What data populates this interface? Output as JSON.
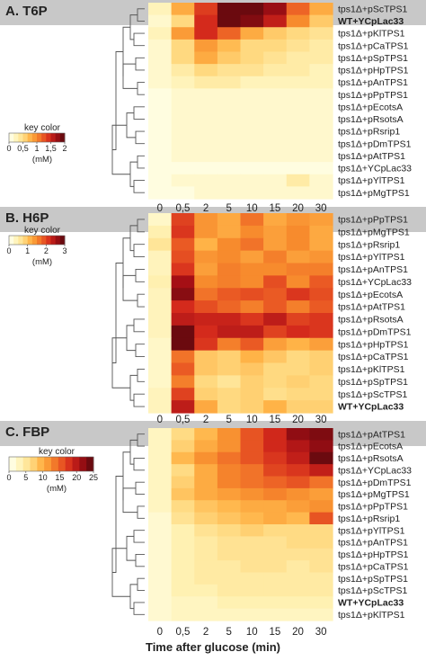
{
  "chart_data": [
    {
      "type": "heatmap",
      "panel_label": "A. T6P",
      "columns": [
        "0",
        "0,5",
        "2",
        "5",
        "10",
        "15",
        "20",
        "30"
      ],
      "rows": [
        "tps1Δ+pScTPS1",
        "WT+YCpLac33",
        "tps1Δ+pKlTPS1",
        "tps1Δ+pCaTPS1",
        "tps1Δ+pSpTPS1",
        "tps1Δ+pHpTPS1",
        "tps1Δ+pAnTPS1",
        "tps1Δ+pPpTPS1",
        "tps1Δ+pEcotsA",
        "tps1Δ+pRsotsA",
        "tps1Δ+pRsrip1",
        "tps1Δ+pDmTPS1",
        "tps1Δ+pAtTPS1",
        "tps1Δ+YCpLac33",
        "tps1Δ+pYlTPS1",
        "tps1Δ+pMgTPS1"
      ],
      "row_style": [
        "normal",
        "bold",
        "normal",
        "normal",
        "normal",
        "normal",
        "normal",
        "normal",
        "normal",
        "normal",
        "normal",
        "normal",
        "normal",
        "red",
        "normal",
        "normal"
      ],
      "values": [
        [
          0.2,
          0.8,
          1.4,
          2.0,
          2.0,
          1.8,
          1.2,
          0.8
        ],
        [
          0.1,
          0.5,
          1.5,
          2.0,
          1.9,
          1.6,
          1.0,
          0.6
        ],
        [
          0.2,
          0.9,
          1.5,
          1.2,
          0.8,
          0.6,
          0.5,
          0.4
        ],
        [
          0.1,
          0.5,
          0.9,
          0.7,
          0.5,
          0.5,
          0.4,
          0.3
        ],
        [
          0.1,
          0.5,
          0.8,
          0.6,
          0.5,
          0.4,
          0.3,
          0.3
        ],
        [
          0.1,
          0.3,
          0.5,
          0.4,
          0.4,
          0.3,
          0.3,
          0.2
        ],
        [
          0.1,
          0.2,
          0.3,
          0.3,
          0.2,
          0.2,
          0.2,
          0.2
        ],
        [
          0.0,
          0.1,
          0.1,
          0.1,
          0.1,
          0.1,
          0.1,
          0.1
        ],
        [
          0.0,
          0.1,
          0.1,
          0.1,
          0.1,
          0.1,
          0.1,
          0.1
        ],
        [
          0.0,
          0.1,
          0.1,
          0.1,
          0.1,
          0.1,
          0.1,
          0.1
        ],
        [
          0.0,
          0.1,
          0.1,
          0.1,
          0.1,
          0.1,
          0.1,
          0.1
        ],
        [
          0.0,
          0.1,
          0.1,
          0.1,
          0.1,
          0.1,
          0.1,
          0.1
        ],
        [
          0.0,
          0.1,
          0.1,
          0.1,
          0.1,
          0.1,
          0.1,
          0.1
        ],
        [
          0.0,
          0.0,
          0.0,
          0.0,
          0.0,
          0.0,
          0.0,
          0.0
        ],
        [
          0.0,
          0.1,
          0.1,
          0.1,
          0.1,
          0.1,
          0.3,
          0.1
        ],
        [
          0.0,
          0.0,
          0.1,
          0.1,
          0.1,
          0.1,
          0.1,
          0.1
        ]
      ],
      "key": {
        "title": "key color",
        "ticks": [
          "0",
          "0,5",
          "1",
          "1,5",
          "2"
        ],
        "unit": "(mM)",
        "min": 0,
        "max": 2
      }
    },
    {
      "type": "heatmap",
      "panel_label": "B. H6P",
      "columns": [
        "0",
        "0,5",
        "2",
        "5",
        "10",
        "15",
        "20",
        "30"
      ],
      "rows": [
        "tps1Δ+pPpTPS1",
        "tps1Δ+pMgTPS1",
        "tps1Δ+pRsrip1",
        "tps1Δ+pYlTPS1",
        "tps1Δ+pAnTPS1",
        "tps1Δ+YCpLac33",
        "tps1Δ+pEcotsA",
        "tps1Δ+pAtTPS1",
        "tps1Δ+pRsotsA",
        "tps1Δ+pDmTPS1",
        "tps1Δ+pHpTPS1",
        "tps1Δ+pCaTPS1",
        "tps1Δ+pKlTPS1",
        "tps1Δ+pSpTPS1",
        "tps1Δ+pScTPS1",
        "WT+YCpLac33"
      ],
      "row_style": [
        "normal",
        "normal",
        "normal",
        "normal",
        "normal",
        "red",
        "normal",
        "normal",
        "normal",
        "normal",
        "normal",
        "normal",
        "normal",
        "normal",
        "normal",
        "bold"
      ],
      "values": [
        [
          0.2,
          2.2,
          1.5,
          1.3,
          1.8,
          1.3,
          1.5,
          1.4
        ],
        [
          0.4,
          2.3,
          1.5,
          1.3,
          1.6,
          1.4,
          1.6,
          1.3
        ],
        [
          0.6,
          2.0,
          1.2,
          1.6,
          1.8,
          1.4,
          1.6,
          1.3
        ],
        [
          0.3,
          2.1,
          1.5,
          1.6,
          1.4,
          1.7,
          1.4,
          1.5
        ],
        [
          0.3,
          2.3,
          1.4,
          1.7,
          1.6,
          1.6,
          1.7,
          1.7
        ],
        [
          0.4,
          2.8,
          1.6,
          1.7,
          1.6,
          2.1,
          1.6,
          2.0
        ],
        [
          0.3,
          3.0,
          1.8,
          2.0,
          2.1,
          2.0,
          2.3,
          2.1
        ],
        [
          0.3,
          2.4,
          2.1,
          1.9,
          1.7,
          2.0,
          1.7,
          2.0
        ],
        [
          0.3,
          2.6,
          2.5,
          2.5,
          2.3,
          2.6,
          2.2,
          2.3
        ],
        [
          0.3,
          3.4,
          2.4,
          2.6,
          2.6,
          2.2,
          2.4,
          2.3
        ],
        [
          0.2,
          3.4,
          2.3,
          1.7,
          2.0,
          1.4,
          1.2,
          1.4
        ],
        [
          0.2,
          1.8,
          1.0,
          0.9,
          1.2,
          1.0,
          0.8,
          0.9
        ],
        [
          0.2,
          2.0,
          1.0,
          0.9,
          1.0,
          0.8,
          0.8,
          0.9
        ],
        [
          0.2,
          1.7,
          0.8,
          0.6,
          0.9,
          0.8,
          0.9,
          0.8
        ],
        [
          0.3,
          2.2,
          0.9,
          0.8,
          0.9,
          0.7,
          0.8,
          0.8
        ],
        [
          0.3,
          2.6,
          1.3,
          0.8,
          0.9,
          1.2,
          0.9,
          0.9
        ]
      ],
      "key": {
        "title": "key color",
        "ticks": [
          "0",
          "1",
          "2",
          "3"
        ],
        "unit": "(mM)",
        "min": 0,
        "max": 3.2
      }
    },
    {
      "type": "heatmap",
      "panel_label": "C. FBP",
      "columns": [
        "0",
        "0,5",
        "2",
        "5",
        "10",
        "15",
        "20",
        "30"
      ],
      "rows": [
        "tps1Δ+pAtTPS1",
        "tps1Δ+pEcotsA",
        "tps1Δ+pRsotsA",
        "tps1Δ+YCpLac33",
        "tps1Δ+pDmTPS1",
        "tps1Δ+pMgTPS1",
        "tps1Δ+pPpTPS1",
        "tps1Δ+pRsrip1",
        "tps1Δ+pYlTPS1",
        "tps1Δ+pAnTPS1",
        "tps1Δ+pHpTPS1",
        "tps1Δ+pCaTPS1",
        "tps1Δ+pSpTPS1",
        "tps1Δ+pScTPS1",
        "WT+YCpLac33",
        "tps1Δ+pKlTPS1"
      ],
      "row_style": [
        "normal",
        "normal",
        "normal",
        "red",
        "normal",
        "normal",
        "normal",
        "normal",
        "normal",
        "normal",
        "normal",
        "normal",
        "normal",
        "normal",
        "bold",
        "normal"
      ],
      "values": [
        [
          2,
          6,
          9,
          12,
          16,
          19,
          23,
          24
        ],
        [
          2,
          7,
          10,
          12,
          16,
          19,
          21,
          23
        ],
        [
          2,
          9,
          12,
          14,
          16,
          18,
          20,
          25
        ],
        [
          2,
          6,
          10,
          13,
          14,
          17,
          18,
          20
        ],
        [
          2,
          7,
          10,
          13,
          14,
          15,
          16,
          14
        ],
        [
          2,
          8,
          10,
          11,
          12,
          13,
          12,
          11
        ],
        [
          2,
          6,
          8,
          9,
          10,
          10,
          11,
          12
        ],
        [
          1,
          5,
          7,
          8,
          9,
          10,
          9,
          16
        ],
        [
          1,
          3,
          5,
          6,
          7,
          6,
          6,
          6
        ],
        [
          1,
          3,
          4,
          5,
          5,
          5,
          6,
          6
        ],
        [
          1,
          3,
          4,
          5,
          5,
          5,
          5,
          5
        ],
        [
          1,
          3,
          4,
          4,
          5,
          5,
          4,
          5
        ],
        [
          1,
          3,
          4,
          4,
          4,
          4,
          4,
          4
        ],
        [
          1,
          3,
          3,
          4,
          4,
          4,
          4,
          4
        ],
        [
          1,
          2,
          2,
          3,
          3,
          3,
          3,
          3
        ],
        [
          1,
          2,
          2,
          2,
          2,
          2,
          2,
          2
        ]
      ],
      "key": {
        "title": "key color",
        "ticks": [
          "0",
          "5",
          "10",
          "15",
          "20",
          "25"
        ],
        "unit": "(mM)",
        "min": 0,
        "max": 25
      }
    }
  ],
  "x_axis_title": "Time after glucose (min)",
  "colors": {
    "scale": [
      "#fffde0",
      "#fff0b0",
      "#ffd980",
      "#ffb347",
      "#f78b2d",
      "#ea5a24",
      "#d42a1c",
      "#a50f15",
      "#6b0a0f"
    ],
    "header_bg": "#c8c8c8",
    "red_label": "#d42a2a"
  }
}
